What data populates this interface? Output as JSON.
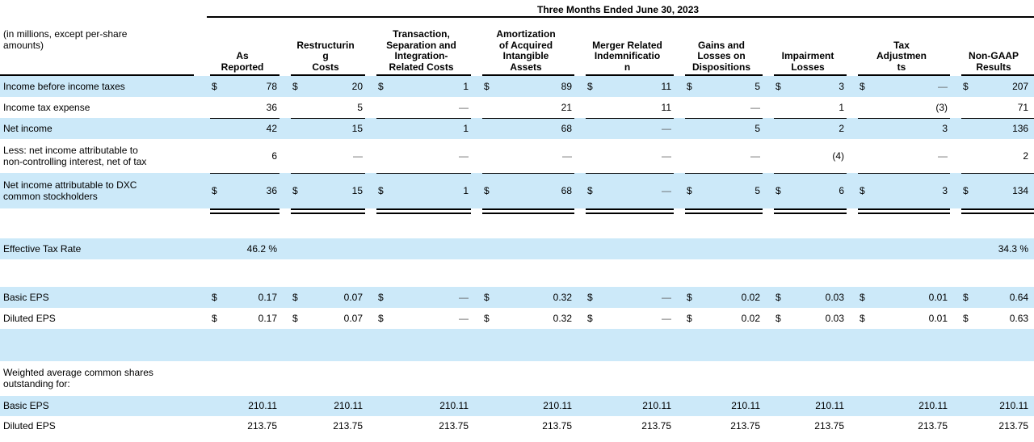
{
  "colors": {
    "highlight": "#cce9f9",
    "rule": "#000000",
    "dash": "#5c5c5c"
  },
  "table": {
    "currency_symbol": "$",
    "period_header": "Three Months Ended June 30, 2023",
    "row_label_header": "(in millions, except per-share\namounts)",
    "columns": [
      "As\nReported",
      "Restructurin\ng\nCosts",
      "Transaction,\nSeparation and\nIntegration-\nRelated Costs",
      "Amortization\nof Acquired\nIntangible\nAssets",
      "Merger Related\nIndemnificatio\nn",
      "Gains and\nLosses on\nDispositions",
      "Impairment\nLosses",
      "Tax\nAdjustmen\nts",
      "Non-GAAP\nResults"
    ],
    "rows": [
      {
        "name": "row-income-before-income-taxes",
        "bg": "blue",
        "money": true,
        "label": "Income before income taxes",
        "values": [
          "78",
          "20",
          "1",
          "89",
          "11",
          "5",
          "3",
          "—",
          "207"
        ]
      },
      {
        "name": "row-income-tax-expense",
        "bg": "white",
        "money": false,
        "label": "Income tax expense",
        "values": [
          "36",
          "5",
          "—",
          "21",
          "11",
          "—",
          "1",
          "(3)",
          "71"
        ]
      },
      {
        "name": "row-net-income",
        "bg": "blue",
        "money": false,
        "rule_top": true,
        "label": "Net income",
        "values": [
          "42",
          "15",
          "1",
          "68",
          "—",
          "5",
          "2",
          "3",
          "136"
        ]
      },
      {
        "name": "row-less-net-income-noncontrolling-interest",
        "bg": "white",
        "money": false,
        "label": "Less: net income attributable to\nnon-controlling interest, net of tax",
        "values": [
          "6",
          "—",
          "—",
          "—",
          "—",
          "—",
          "(4)",
          "—",
          "2"
        ]
      },
      {
        "name": "row-net-income-attributable-to-dxc",
        "bg": "blue",
        "money": true,
        "rule_top": true,
        "label": "Net income attributable to DXC\ncommon stockholders",
        "values": [
          "36",
          "15",
          "1",
          "68",
          "—",
          "5",
          "6",
          "3",
          "134"
        ]
      },
      {
        "kind": "dblrule",
        "name": "double-rule-row"
      },
      {
        "kind": "spacer",
        "bg": "white",
        "name": "spacer-row"
      },
      {
        "name": "row-effective-tax-rate",
        "bg": "blue",
        "money": false,
        "label": "Effective Tax Rate",
        "values": [
          "46.2 %",
          "",
          "",
          "",
          "",
          "",
          "",
          "",
          "34.3 %"
        ]
      },
      {
        "kind": "spacer",
        "bg": "white",
        "name": "spacer-row"
      },
      {
        "name": "row-basic-eps",
        "bg": "blue",
        "money": true,
        "label": "Basic EPS",
        "values": [
          "0.17",
          "0.07",
          "—",
          "0.32",
          "—",
          "0.02",
          "0.03",
          "0.01",
          "0.64"
        ]
      },
      {
        "name": "row-diluted-eps",
        "bg": "white",
        "money": true,
        "label": "Diluted EPS",
        "values": [
          "0.17",
          "0.07",
          "—",
          "0.32",
          "—",
          "0.02",
          "0.03",
          "0.01",
          "0.63"
        ]
      },
      {
        "kind": "spacer",
        "bg": "blue",
        "name": "highlight-spacer-row"
      },
      {
        "name": "row-weighted-average-shares-note",
        "bg": "white",
        "money": false,
        "label": "Weighted average common shares\noutstanding for:",
        "values": [
          "",
          "",
          "",
          "",
          "",
          "",
          "",
          "",
          ""
        ]
      },
      {
        "name": "row-basic-eps-shares",
        "bg": "blue",
        "money": false,
        "label": "Basic EPS",
        "values": [
          "210.11",
          "210.11",
          "210.11",
          "210.11",
          "210.11",
          "210.11",
          "210.11",
          "210.11",
          "210.11"
        ]
      },
      {
        "name": "row-diluted-eps-shares",
        "bg": "white",
        "money": false,
        "label": "Diluted EPS",
        "values": [
          "213.75",
          "213.75",
          "213.75",
          "213.75",
          "213.75",
          "213.75",
          "213.75",
          "213.75",
          "213.75"
        ]
      },
      {
        "kind": "spacer",
        "bg": "white",
        "name": "spacer-row"
      }
    ]
  }
}
